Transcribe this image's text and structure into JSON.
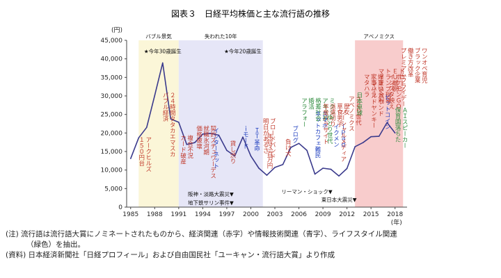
{
  "chart_data": {
    "type": "line",
    "title": "図表３　日経平均株価と主な流行語の推移",
    "ylabel": "(円)",
    "xlabel": "(年)",
    "ylim": [
      0,
      45000
    ],
    "xlim": [
      1984.5,
      2019.5
    ],
    "yticks": [
      0,
      5000,
      10000,
      15000,
      20000,
      25000,
      30000,
      35000,
      40000,
      45000
    ],
    "ytick_labels": [
      "0",
      "5,000",
      "10,000",
      "15,000",
      "20,000",
      "25,000",
      "30,000",
      "35,000",
      "40,000",
      "45,000"
    ],
    "xticks": [
      1985,
      1988,
      1991,
      1994,
      1997,
      2000,
      2003,
      2006,
      2009,
      2012,
      2015,
      2018
    ],
    "series": [
      {
        "name": "日経平均株価",
        "color": "#3a3a8c",
        "x": [
          1985,
          1986,
          1987,
          1988,
          1989,
          1990,
          1991,
          1992,
          1993,
          1994,
          1995,
          1996,
          1997,
          1998,
          1999,
          2000,
          2001,
          2002,
          2003,
          2004,
          2005,
          2006,
          2007,
          2008,
          2009,
          2010,
          2011,
          2012,
          2013,
          2014,
          2015,
          2016,
          2017,
          2018
        ],
        "values": [
          13100,
          18700,
          21500,
          30100,
          38900,
          23800,
          22900,
          16900,
          17400,
          19700,
          19900,
          19400,
          15300,
          13800,
          18900,
          13800,
          10500,
          8600,
          10700,
          11500,
          16100,
          17200,
          15300,
          8900,
          10500,
          10200,
          8400,
          10400,
          16300,
          17400,
          19000,
          19100,
          22800,
          20000
        ]
      }
    ],
    "bands": [
      {
        "label": "バブル景気",
        "start": 1986,
        "end": 1991,
        "color": "#fbf6d8"
      },
      {
        "label": "失われた10年",
        "start": 1991,
        "end": 2001.5,
        "color": "#e6e6f7"
      },
      {
        "label": "アベノミクス",
        "start": 2013,
        "end": 2019,
        "color": "#f8cccc"
      }
    ],
    "word_groups": [
      {
        "x": 1986.3,
        "y": 19000,
        "color": "#c0392b",
        "lines": [
          "１５０円台",
          "アークヒルズ"
        ]
      },
      {
        "x": 1989.3,
        "y": 31000,
        "color": "#c0392b",
        "lines": [
          "バブル経済",
          "２４時間タタカエマスカ"
        ]
      },
      {
        "x": 1991.5,
        "y": 19500,
        "color": "#c0392b",
        "lines": [
          "カード破産",
          "複合不況"
        ]
      },
      {
        "x": 1993.5,
        "y": 22000,
        "color": "#c0392b",
        "lines": [
          "価格破壊",
          "就職氷河期",
          "契約スチュワーデス"
        ]
      },
      {
        "x": 1995.6,
        "y": 21500,
        "color": "#1f3fbf",
        "lines": [
          "インターネット"
        ]
      },
      {
        "x": 1997.7,
        "y": 18000,
        "color": "#c0392b",
        "lines": [
          "貸し渋り"
        ]
      },
      {
        "x": 1999.3,
        "y": 22000,
        "color": "#1f3fbf",
        "lines": [
          "ｉモード"
        ]
      },
      {
        "x": 2000.7,
        "y": 21500,
        "color": "#1f3fbf",
        "lines": [
          "ＩＴ革命"
        ]
      },
      {
        "x": 2001.8,
        "y": 24000,
        "color": "#c0392b",
        "lines": [
          "明日があるさ",
          "ブロードバンド"
        ]
      },
      {
        "x": 2002.3,
        "y": 20000,
        "color": "#c0392b",
        "lines": [
          "年収３百万円"
        ]
      },
      {
        "x": 2004.6,
        "y": 18500,
        "color": "#c0392b",
        "lines": [
          "負け犬"
        ]
      },
      {
        "x": 2005.5,
        "y": 22000,
        "color": "#1f3fbf",
        "lines": [
          "ブログ"
        ]
      },
      {
        "x": 2006.6,
        "y": 29500,
        "color": "#2e8b3d",
        "lines": [
          "アラフォー",
          "婚活",
          "格差社会",
          "アキバ系",
          "ミクシィ"
        ]
      },
      {
        "x": 2008.3,
        "y": 26000,
        "color": "#1f3fbf",
        "lines": [
          "ネットカフェ難民",
          "スマホ"
        ]
      },
      {
        "x": 2009.3,
        "y": 28000,
        "color": "#c0392b",
        "lines": [
          "年金パラサイト",
          "派遣切り",
          "草食男子",
          "歴女"
        ]
      },
      {
        "x": 2009.8,
        "y": 25000,
        "color": "#2e8b3d",
        "lines": [
          "ゆとり世代"
        ]
      },
      {
        "x": 2010.6,
        "y": 22500,
        "color": "#1f3fbf",
        "lines": [
          "イクメン",
          "ｉＰａｄ"
        ]
      },
      {
        "x": 2011.5,
        "y": 26500,
        "color": "#c0392b",
        "lines": [
          "ソーシャルメディア"
        ]
      },
      {
        "x": 2012.5,
        "y": 30000,
        "color": "#c0392b",
        "lines": [
          "アベノミクス",
          "さとり世代"
        ]
      },
      {
        "x": 2013.5,
        "y": 31000,
        "color": "#2e8b3d",
        "lines": [
          "日本卓球"
        ]
      },
      {
        "x": 2014.4,
        "y": 36000,
        "color": "#c0392b",
        "lines": [
          "マタハラ",
          "家事ハラ",
          "爆買い"
        ]
      },
      {
        "x": 2015.3,
        "y": 34000,
        "color": "#c0392b",
        "lines": [
          "マイルドヤンキー",
          "インバウンド"
        ]
      },
      {
        "x": 2016.2,
        "y": 37500,
        "color": "#c0392b",
        "lines": [
          "マイナス金利",
          "トランプ現象",
          "ＥＵ離脱",
          "ドローン"
        ]
      },
      {
        "x": 2017.0,
        "y": 30500,
        "color": "#1f3fbf",
        "lines": [
          "ビットコイン"
        ]
      },
      {
        "x": 2017.5,
        "y": 36000,
        "color": "#c0392b",
        "lines": [
          "インスタ映え",
          "ポケモンＧＯ"
        ]
      },
      {
        "x": 2018.3,
        "y": 27000,
        "color": "#2e8b3d",
        "lines": [
          "保育園落ちた",
          "ＡＩスピーカー"
        ]
      },
      {
        "x": 2019.0,
        "y": 43000,
        "color": "#c0392b",
        "lines": [
          "プレミアムフライデー",
          "働き方改革",
          "ブラック企業",
          "ワンオペ育児"
        ]
      }
    ],
    "annotations": [
      {
        "text": "★今年30歳誕生",
        "x": 1989,
        "y": 41500
      },
      {
        "text": "★今年20歳誕生",
        "x": 1999,
        "y": 41500
      },
      {
        "text": "阪神・淡路大震災▼",
        "x": 1995,
        "y": 3000
      },
      {
        "text": "地下鉄サリン事件▼",
        "x": 1995,
        "y": 700
      },
      {
        "text": "リーマン・ショック▼",
        "x": 2007,
        "y": 3700
      },
      {
        "text": "東日本大震災▼",
        "x": 2011,
        "y": 1500
      }
    ]
  },
  "notes": {
    "line1": "(注) 流行語は流行語大賞にノミネートされたものから、経済関連（赤字）や情報技術関連（青字）、ライフスタイル関連",
    "line2": "（緑色）を抽出。",
    "source": "(資料) 日本経済新聞社「日経プロフィール」および自由国民社「ユーキャン・流行語大賞」より作成"
  }
}
